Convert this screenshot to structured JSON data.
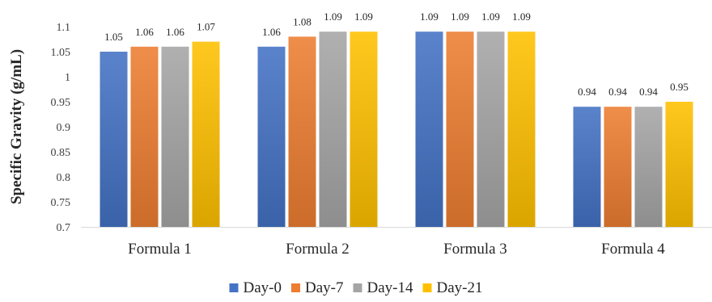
{
  "chart_data": {
    "type": "bar",
    "title": "",
    "xlabel": "",
    "ylabel": "Specific Gravity (g/mL)",
    "ylim": [
      0.7,
      1.1
    ],
    "yticks": [
      "0.7",
      "0.75",
      "0.8",
      "0.85",
      "0.9",
      "0.95",
      "1",
      "1.05",
      "1.1"
    ],
    "grid": false,
    "legend_position": "bottom",
    "categories": [
      "Formula 1",
      "Formula 2",
      "Formula 3",
      "Formula 4"
    ],
    "series": [
      {
        "name": "Day-0",
        "color": "#4472C4",
        "values": [
          1.05,
          1.06,
          1.09,
          0.94
        ],
        "labels": [
          "1.05",
          "1.06",
          "1.09",
          "0.94"
        ]
      },
      {
        "name": "Day-7",
        "color": "#ED7D31",
        "values": [
          1.06,
          1.08,
          1.09,
          0.94
        ],
        "labels": [
          "1.06",
          "1.08",
          "1.09",
          "0.94"
        ]
      },
      {
        "name": "Day-14",
        "color": "#A5A5A5",
        "values": [
          1.06,
          1.09,
          1.09,
          0.94
        ],
        "labels": [
          "1.06",
          "1.09",
          "1.09",
          "0.94"
        ]
      },
      {
        "name": "Day-21",
        "color": "#FFC000",
        "values": [
          1.07,
          1.09,
          1.09,
          0.95
        ],
        "labels": [
          "1.07",
          "1.09",
          "1.09",
          "0.95"
        ]
      }
    ]
  }
}
